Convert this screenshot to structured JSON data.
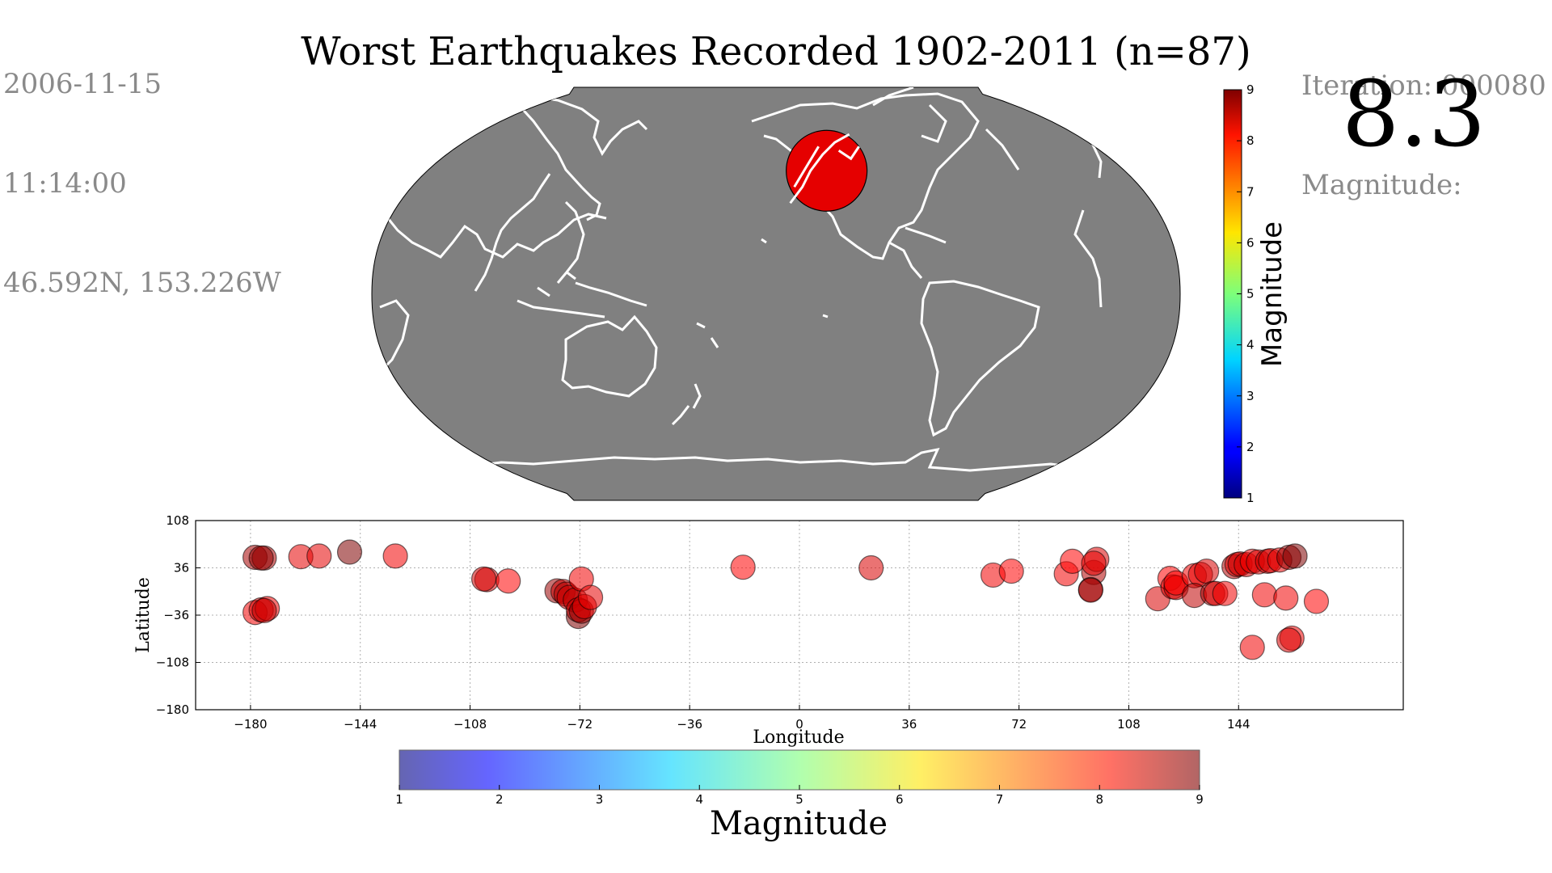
{
  "info": {
    "date": "2006-11-15",
    "time": "11:14:00",
    "coords": "46.592N, 153.226W",
    "iteration": "Iteration: 000080",
    "magnitude_label": "Magnitude:",
    "magnitude_value": "8.3"
  },
  "title": "Worst Earthquakes Recorded 1902-2011 (n=87)",
  "colors": {
    "ocean": "#808080",
    "coast": "#ffffff",
    "marker": "#e50000"
  },
  "map": {
    "projection": "robinson",
    "center_longitude": 180,
    "current_event": {
      "lon": -153.226,
      "lat": 46.592,
      "magnitude": 8.3
    },
    "colorbar": {
      "label": "Magnitude",
      "ticks": [
        "1",
        "2",
        "3",
        "4",
        "5",
        "6",
        "7",
        "8",
        "9"
      ],
      "min": 1,
      "max": 9
    }
  },
  "chart_data": {
    "type": "scatter",
    "xlabel": "Longitude",
    "ylabel": "Latitude",
    "xlim": [
      -198,
      198
    ],
    "ylim": [
      -180,
      108
    ],
    "xticks": [
      "−180",
      "−144",
      "−108",
      "−72",
      "−36",
      "0",
      "36",
      "72",
      "108",
      "144"
    ],
    "yticks": [
      "108",
      "36",
      "−36",
      "−108",
      "−180"
    ],
    "grid": true,
    "colorbar": {
      "label": "Magnitude",
      "ticks": [
        "1",
        "2",
        "3",
        "4",
        "5",
        "6",
        "7",
        "8",
        "9"
      ],
      "min": 1,
      "max": 9
    },
    "points": [
      {
        "x": -178.5,
        "y": 52,
        "m": 8.7
      },
      {
        "x": -175.5,
        "y": 51,
        "m": 8.6
      },
      {
        "x": -176.5,
        "y": 51,
        "m": 8.9
      },
      {
        "x": -163.5,
        "y": 53,
        "m": 8.2
      },
      {
        "x": -157.5,
        "y": 54,
        "m": 8.2
      },
      {
        "x": -147.5,
        "y": 60,
        "m": 9.2
      },
      {
        "x": -132.5,
        "y": 54,
        "m": 8.1
      },
      {
        "x": -178.5,
        "y": -32,
        "m": 8.1
      },
      {
        "x": -176.5,
        "y": -28,
        "m": 8.3
      },
      {
        "x": -174.5,
        "y": -26,
        "m": 8.1
      },
      {
        "x": -175.5,
        "y": -29,
        "m": 8.5
      },
      {
        "x": -102.5,
        "y": 18,
        "m": 8.2
      },
      {
        "x": -103.5,
        "y": 19,
        "m": 8.4
      },
      {
        "x": -95.5,
        "y": 16,
        "m": 8.0
      },
      {
        "x": -79.5,
        "y": 1,
        "m": 8.8
      },
      {
        "x": -77.5,
        "y": 0,
        "m": 8.4
      },
      {
        "x": -76.5,
        "y": -4,
        "m": 8.6
      },
      {
        "x": -75.5,
        "y": -9,
        "m": 8.4
      },
      {
        "x": -73.5,
        "y": -13,
        "m": 8.5
      },
      {
        "x": -72.5,
        "y": -38,
        "m": 9.5
      },
      {
        "x": -72.5,
        "y": -28,
        "m": 8.5
      },
      {
        "x": -71.5,
        "y": -30,
        "m": 8.8
      },
      {
        "x": -70.5,
        "y": -23,
        "m": 8.2
      },
      {
        "x": -71.5,
        "y": 19,
        "m": 8.1
      },
      {
        "x": -68.5,
        "y": -9,
        "m": 8.2
      },
      {
        "x": -18.5,
        "y": 37,
        "m": 8.0
      },
      {
        "x": 23.5,
        "y": 36,
        "m": 8.3
      },
      {
        "x": 63.5,
        "y": 25,
        "m": 8.1
      },
      {
        "x": 69.5,
        "y": 31,
        "m": 8.0
      },
      {
        "x": 87.5,
        "y": 27,
        "m": 8.1
      },
      {
        "x": 89.5,
        "y": 46,
        "m": 8.0
      },
      {
        "x": 96.5,
        "y": 29,
        "m": 8.6
      },
      {
        "x": 97.5,
        "y": 49,
        "m": 8.3
      },
      {
        "x": 96.5,
        "y": 43,
        "m": 8.2
      },
      {
        "x": 95.5,
        "y": 3,
        "m": 9.1
      },
      {
        "x": 95.5,
        "y": 2,
        "m": 8.6
      },
      {
        "x": 117.5,
        "y": -11,
        "m": 8.3
      },
      {
        "x": 121.5,
        "y": 20,
        "m": 8.0
      },
      {
        "x": 122.5,
        "y": 7,
        "m": 8.2
      },
      {
        "x": 123.5,
        "y": 6,
        "m": 8.4
      },
      {
        "x": 123.5,
        "y": 13,
        "m": 8.0
      },
      {
        "x": 129.5,
        "y": 24,
        "m": 8.1
      },
      {
        "x": 131.5,
        "y": 26,
        "m": 8.2
      },
      {
        "x": 133.5,
        "y": 31,
        "m": 8.3
      },
      {
        "x": 129.5,
        "y": -6,
        "m": 8.5
      },
      {
        "x": 135.5,
        "y": -3,
        "m": 8.7
      },
      {
        "x": 136.5,
        "y": -3,
        "m": 8.2
      },
      {
        "x": 139.5,
        "y": -3,
        "m": 8.1
      },
      {
        "x": 142.5,
        "y": 38,
        "m": 8.6
      },
      {
        "x": 143.5,
        "y": 41,
        "m": 8.2
      },
      {
        "x": 144.5,
        "y": 42,
        "m": 8.4
      },
      {
        "x": 146.5,
        "y": 41,
        "m": 8.3
      },
      {
        "x": 148.5,
        "y": 46,
        "m": 8.1
      },
      {
        "x": 150.5,
        "y": 45,
        "m": 8.3
      },
      {
        "x": 153.5,
        "y": 46,
        "m": 8.3
      },
      {
        "x": 154.5,
        "y": 47,
        "m": 8.3
      },
      {
        "x": 157.5,
        "y": 48,
        "m": 8.2
      },
      {
        "x": 160.5,
        "y": 52,
        "m": 8.8
      },
      {
        "x": 162.5,
        "y": 54,
        "m": 9.0
      },
      {
        "x": 152.5,
        "y": -5,
        "m": 8.1
      },
      {
        "x": 148.5,
        "y": -85,
        "m": 8.1
      },
      {
        "x": 159.5,
        "y": -10,
        "m": 8.1
      },
      {
        "x": 161.5,
        "y": -71,
        "m": 8.1
      },
      {
        "x": 160.5,
        "y": -74,
        "m": 8.3
      },
      {
        "x": 169.5,
        "y": -15,
        "m": 8.0
      }
    ]
  }
}
